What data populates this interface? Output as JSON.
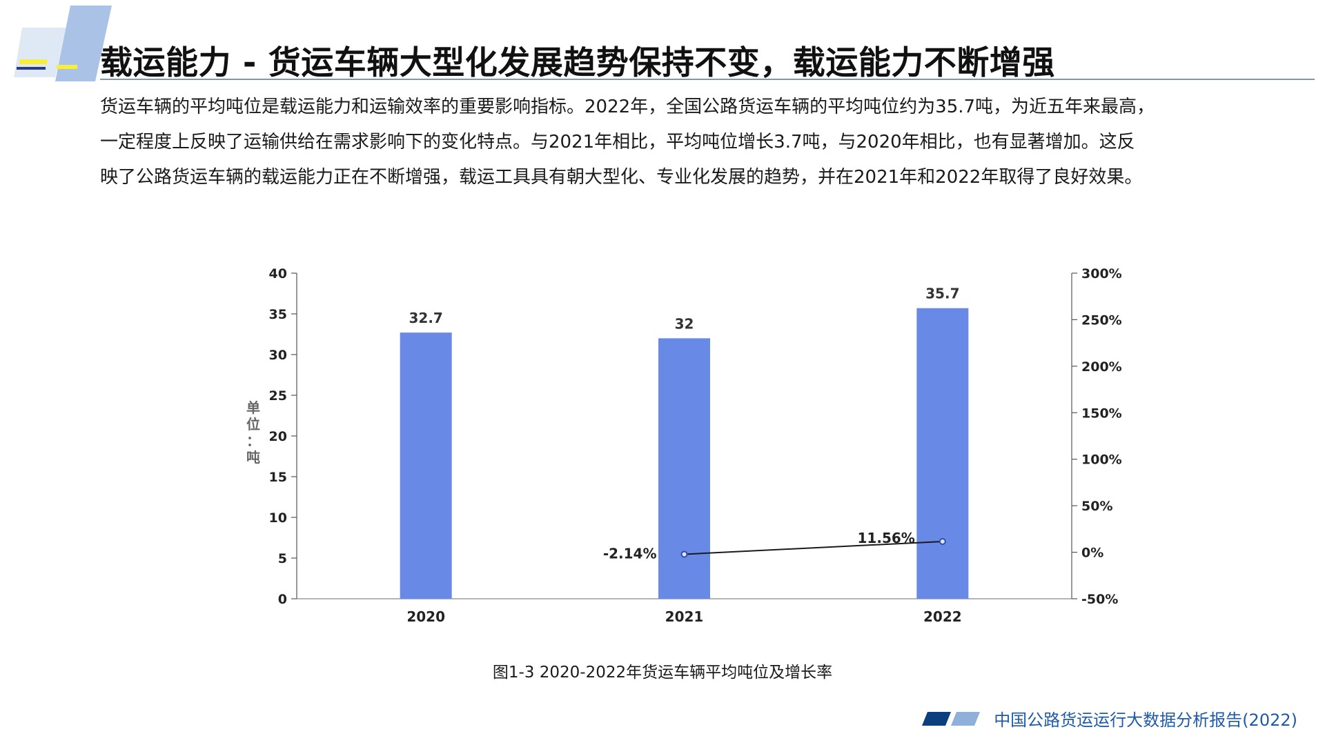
{
  "title": "载运能力 - 货运车辆大型化发展趋势保持不变，载运能力不断增强",
  "paragraph": [
    "货运车辆的平均吨位是载运能力和运输效率的重要影响指标。2022年，全国公路货运车辆的平均吨位约为35.7吨，为近五年来最高，",
    "一定程度上反映了运输供给在需求影响下的变化特点。与2021年相比，平均吨位增长3.7吨，与2020年相比，也有显著增加。这反",
    "映了公路货运车辆的载运能力正在不断增强，载运工具具有朝大型化、专业化发展的趋势，并在2021年和2022年取得了良好效果。"
  ],
  "caption": "图1-3 2020-2022年货运车辆平均吨位及增长率",
  "footer": "中国公路货运运行大数据分析报告(2022)",
  "colors": {
    "bar": "#6889e6",
    "line": "#1a1a1a",
    "marker": "#2f4fa8",
    "footer": "#1f5aa6",
    "rule": "#7d97b2"
  },
  "chart_data": {
    "type": "bar",
    "title": "",
    "categories": [
      "2020",
      "2021",
      "2022"
    ],
    "series": [
      {
        "name": "平均吨位",
        "type": "bar",
        "axis": "left",
        "values": [
          32.7,
          32,
          35.7
        ],
        "labels": [
          "32.7",
          "32",
          "35.7"
        ]
      },
      {
        "name": "增长率",
        "type": "line",
        "axis": "right",
        "values": [
          null,
          -2.14,
          11.56
        ],
        "labels": [
          "",
          "-2.14%",
          "11.56%"
        ]
      }
    ],
    "ylabel": "单位：吨",
    "ylim": [
      0,
      40
    ],
    "yticks": [
      0,
      5,
      10,
      15,
      20,
      25,
      30,
      35,
      40
    ],
    "ylim_right": [
      -50,
      300
    ],
    "yticks_right": [
      -50,
      0,
      50,
      100,
      150,
      200,
      250,
      300
    ],
    "yticks_right_labels": [
      "-50%",
      "0%",
      "50%",
      "100%",
      "150%",
      "200%",
      "250%",
      "300%"
    ],
    "grid": false
  }
}
